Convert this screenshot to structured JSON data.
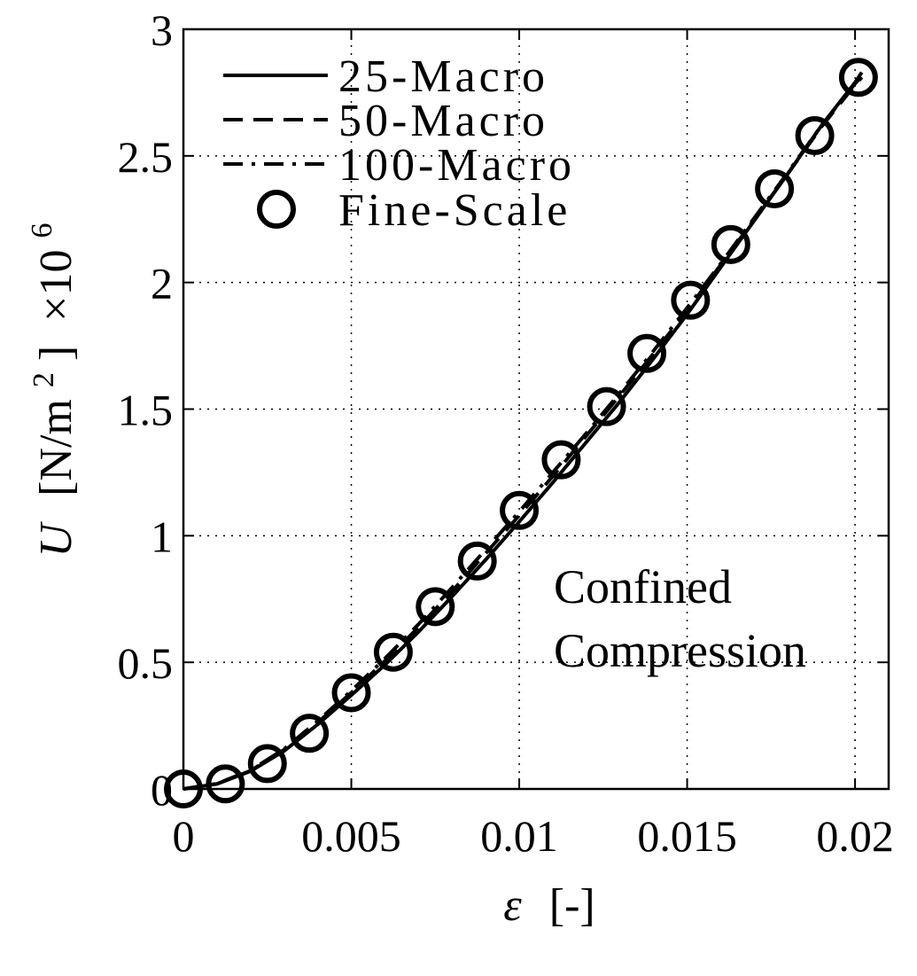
{
  "chart_data": {
    "type": "line",
    "xlabel_symbol": "ε",
    "xlabel_unit": "[-]",
    "ylabel_symbol": "U",
    "ylabel_unit": "[N/m",
    "ylabel_unit_exp": "2",
    "ylabel_unit_close": "]",
    "ylabel_scale": "×10",
    "ylabel_scale_exp": "6",
    "xlim": [
      0,
      0.021
    ],
    "ylim": [
      0,
      3
    ],
    "xticks": [
      0,
      0.005,
      0.01,
      0.015,
      0.02
    ],
    "xtick_labels": [
      "0",
      "0.005",
      "0.01",
      "0.015",
      "0.02"
    ],
    "yticks": [
      0,
      0.5,
      1,
      1.5,
      2,
      2.5,
      3
    ],
    "ytick_labels": [
      "0",
      "0.5",
      "1",
      "1.5",
      "2",
      "2.5",
      "3"
    ],
    "grid": true,
    "legend_position": "top-left",
    "annotation_lines": [
      "Confined",
      "Compression"
    ],
    "series": [
      {
        "name": "25-Macro",
        "style": "solid",
        "color": "#000000",
        "x": [
          0,
          0.001,
          0.002,
          0.003,
          0.004,
          0.005,
          0.006,
          0.007,
          0.008,
          0.009,
          0.01,
          0.011,
          0.012,
          0.013,
          0.014,
          0.015,
          0.016,
          0.017,
          0.018,
          0.019,
          0.02,
          0.0202
        ],
        "y": [
          0,
          0.02,
          0.07,
          0.15,
          0.255,
          0.37,
          0.49,
          0.62,
          0.76,
          0.905,
          1.055,
          1.21,
          1.37,
          1.53,
          1.7,
          1.875,
          2.06,
          2.245,
          2.43,
          2.62,
          2.79,
          2.83
        ]
      },
      {
        "name": "50-Macro",
        "style": "dashed",
        "color": "#000000",
        "x": [
          0,
          0.001,
          0.002,
          0.003,
          0.004,
          0.005,
          0.006,
          0.007,
          0.008,
          0.009,
          0.01,
          0.011,
          0.012,
          0.013,
          0.014,
          0.015,
          0.016,
          0.017,
          0.018,
          0.019,
          0.02,
          0.0202
        ],
        "y": [
          0,
          0.02,
          0.072,
          0.155,
          0.262,
          0.38,
          0.505,
          0.638,
          0.78,
          0.93,
          1.08,
          1.235,
          1.395,
          1.555,
          1.72,
          1.89,
          2.07,
          2.25,
          2.43,
          2.615,
          2.78,
          2.81
        ]
      },
      {
        "name": "100-Macro",
        "style": "dashdot",
        "color": "#000000",
        "x": [
          0,
          0.001,
          0.002,
          0.003,
          0.004,
          0.005,
          0.006,
          0.007,
          0.008,
          0.009,
          0.01,
          0.011,
          0.012,
          0.013,
          0.014,
          0.015,
          0.016,
          0.017,
          0.018,
          0.019,
          0.02,
          0.0202
        ],
        "y": [
          0,
          0.021,
          0.074,
          0.158,
          0.268,
          0.388,
          0.515,
          0.65,
          0.795,
          0.945,
          1.095,
          1.25,
          1.405,
          1.565,
          1.73,
          1.9,
          2.075,
          2.255,
          2.435,
          2.62,
          2.785,
          2.815
        ]
      },
      {
        "name": "Fine-Scale",
        "style": "marker-circle",
        "color": "#000000",
        "x": [
          0,
          0.00125,
          0.0025,
          0.00375,
          0.005,
          0.00625,
          0.0075,
          0.00875,
          0.01,
          0.01125,
          0.0126,
          0.0138,
          0.0151,
          0.0163,
          0.0176,
          0.0188,
          0.0201
        ],
        "y": [
          0,
          0.02,
          0.1,
          0.22,
          0.38,
          0.54,
          0.72,
          0.9,
          1.1,
          1.3,
          1.51,
          1.72,
          1.93,
          2.15,
          2.37,
          2.58,
          2.81
        ]
      }
    ]
  }
}
